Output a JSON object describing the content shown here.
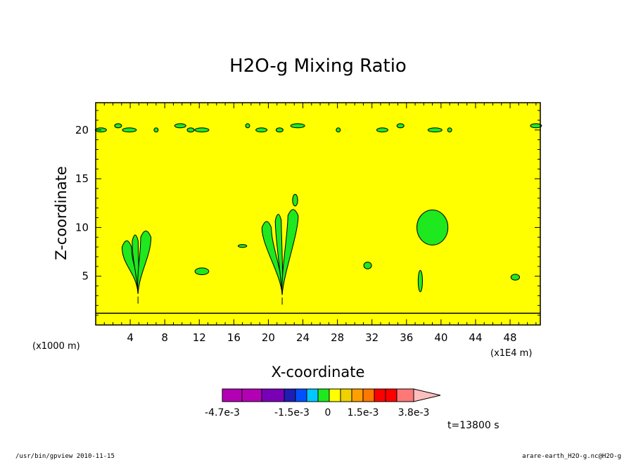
{
  "chart_data": {
    "type": "contour",
    "title": "H2O-g Mixing Ratio",
    "xlabel": "X-coordinate",
    "ylabel": "Z-coordinate",
    "x_unit_left": "(x1000 m)",
    "x_unit_right": "(x1E4 m)",
    "xlim": [
      0,
      51.5
    ],
    "ylim": [
      0,
      22.8
    ],
    "x_ticks": [
      4,
      8,
      12,
      16,
      20,
      24,
      28,
      32,
      36,
      40,
      44,
      48
    ],
    "y_ticks": [
      5,
      10,
      15,
      20
    ],
    "background_value_color": "#ffff00",
    "contour_fill_color": "#1ee81e",
    "surface_line_z": 1.2,
    "regions": [
      {
        "type": "cell",
        "x": 4.9,
        "z_base": 3.2,
        "z_top": 10.0,
        "spread": 1.3
      },
      {
        "type": "cell",
        "x": 21.6,
        "z_base": 3.1,
        "z_top": 12.2,
        "spread": 1.8
      },
      {
        "type": "blob",
        "x": 39.0,
        "z": 10.0,
        "rx": 1.8,
        "rz": 1.8
      },
      {
        "type": "blob",
        "x": 37.6,
        "z": 4.5,
        "rx": 0.25,
        "rz": 1.1
      },
      {
        "type": "blob",
        "x": 12.3,
        "z": 5.5,
        "rx": 0.8,
        "rz": 0.35
      },
      {
        "type": "blob",
        "x": 31.5,
        "z": 6.1,
        "rx": 0.45,
        "rz": 0.35
      },
      {
        "type": "blob",
        "x": 17.0,
        "z": 8.1,
        "rx": 0.5,
        "rz": 0.15
      },
      {
        "type": "blob",
        "x": 48.6,
        "z": 4.9,
        "rx": 0.5,
        "rz": 0.3
      },
      {
        "type": "blob",
        "x": 23.1,
        "z": 12.8,
        "rx": 0.3,
        "rz": 0.6
      }
    ],
    "upper_band_z": 20.0,
    "colorbar": {
      "colors": [
        "#b400b4",
        "#b400b4",
        "#7a00b8",
        "#1e1eb4",
        "#0050ff",
        "#00c8ff",
        "#1ee81e",
        "#ffff00",
        "#f0d200",
        "#ffa000",
        "#ff7800",
        "#ff0000",
        "#ff0000",
        "#ff7878",
        "#ffbebe"
      ],
      "labels": [
        "-4.7e-3",
        "-1.5e-3",
        "0",
        "1.5e-3",
        "3.8e-3"
      ]
    }
  },
  "time_label": "t=13800 s",
  "footer_left": "/usr/bin/gpview  2010-11-15",
  "footer_right": "arare-earth_H2O-g.nc@H2O-g"
}
